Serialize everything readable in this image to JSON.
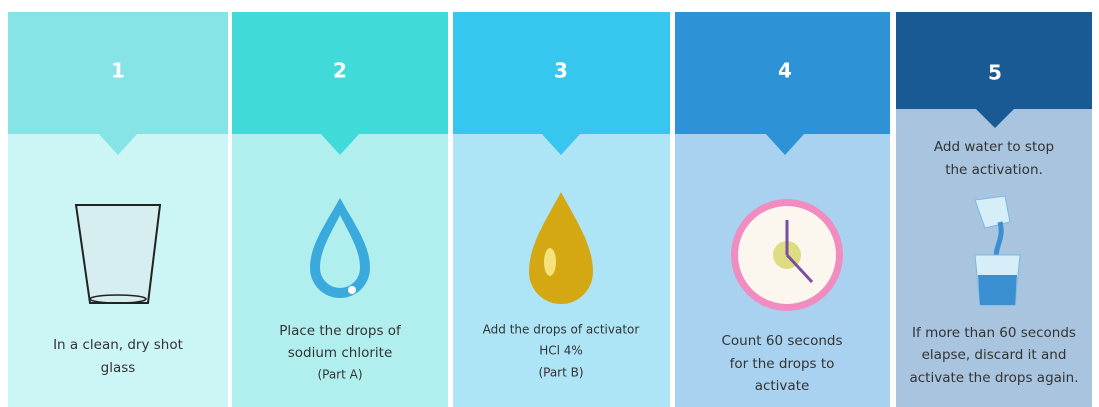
{
  "steps": [
    {
      "number": "1",
      "lines": [
        "In a clean, dry shot",
        "glass"
      ]
    },
    {
      "number": "2",
      "lines": [
        "Place the drops of",
        "sodium chlorite",
        "(Part A)"
      ]
    },
    {
      "number": "3",
      "lines": [
        "Add the drops of activator",
        "HCl 4%",
        "(Part B)"
      ]
    },
    {
      "number": "4",
      "lines": [
        "Count 60 seconds",
        "for the drops to",
        "activate"
      ]
    },
    {
      "number": "5",
      "top_lines": [
        "Add water to stop",
        "the activation."
      ],
      "lines": [
        "If more than 60 seconds",
        "elapse, discard it and",
        "activate the drops again."
      ]
    }
  ]
}
